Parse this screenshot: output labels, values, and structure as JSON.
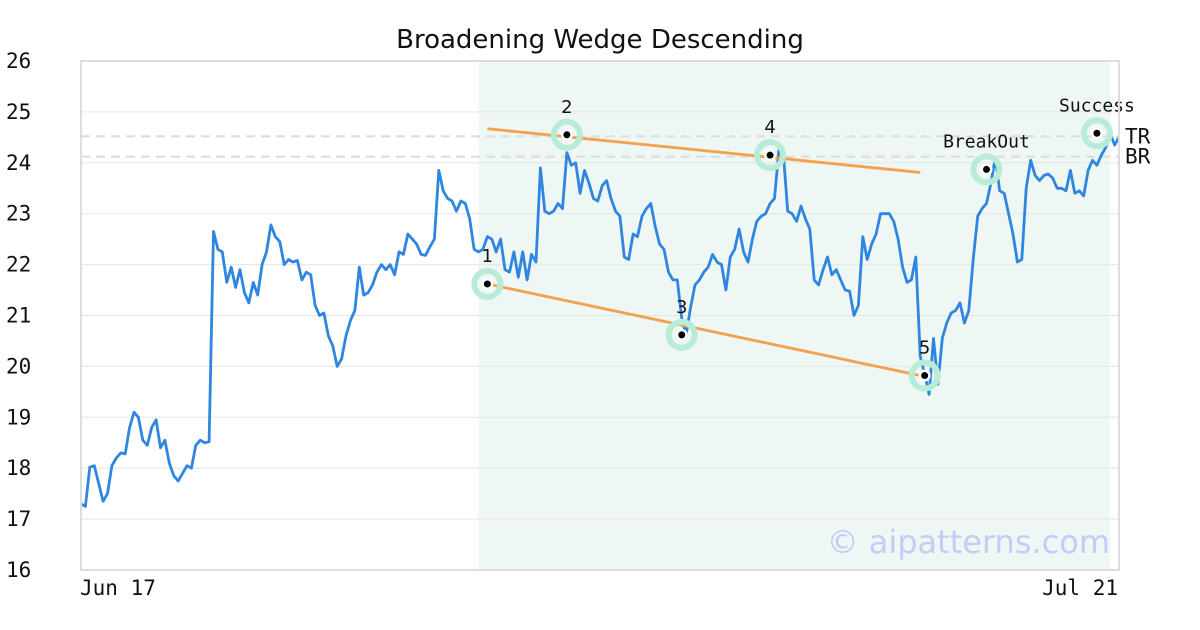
{
  "chart_data": {
    "type": "line",
    "title": "Broadening Wedge Descending",
    "watermark": "© aipatterns.com",
    "x_labels": [
      "Jun 17",
      "Jul 21"
    ],
    "ylim": [
      16,
      26
    ],
    "yticks": [
      16,
      17,
      18,
      19,
      20,
      21,
      22,
      23,
      24,
      25,
      26
    ],
    "grid": true,
    "colors": {
      "price_line": "#2f86e0",
      "trend_lines": "#f5a04d",
      "pattern_zone": "#eef7f3",
      "marker_halo": "#b9ecd7",
      "levels": "#dddddd",
      "axes": "#dddddd"
    },
    "pattern_zone": {
      "start_index": 90,
      "end_index": 233
    },
    "levels": [
      {
        "name": "TR",
        "value": 24.52
      },
      {
        "name": "BR",
        "value": 24.12
      }
    ],
    "trend_lines": [
      {
        "x": [
          92,
          190
        ],
        "y": [
          24.67,
          23.81
        ]
      },
      {
        "x": [
          92,
          190
        ],
        "y": [
          21.62,
          19.82
        ]
      }
    ],
    "points": [
      {
        "label": "1",
        "x": 92,
        "y": 21.62
      },
      {
        "label": "2",
        "x": 110,
        "y": 24.55
      },
      {
        "label": "3",
        "x": 136,
        "y": 20.62
      },
      {
        "label": "4",
        "x": 156,
        "y": 24.15
      },
      {
        "label": "5",
        "x": 191,
        "y": 19.82
      },
      {
        "label": "BreakOut",
        "x": 205,
        "y": 23.87
      },
      {
        "label": "Success",
        "x": 230,
        "y": 24.58
      }
    ],
    "series": [
      {
        "values": [
          17.3,
          17.25,
          18.02,
          18.05,
          17.7,
          17.35,
          17.5,
          18.05,
          18.2,
          18.3,
          18.28,
          18.8,
          19.1,
          19.0,
          18.55,
          18.45,
          18.8,
          18.95,
          18.4,
          18.55,
          18.1,
          17.85,
          17.75,
          17.9,
          18.05,
          18.0,
          18.45,
          18.55,
          18.5,
          18.52,
          22.65,
          22.3,
          22.25,
          21.65,
          21.95,
          21.55,
          21.9,
          21.45,
          21.25,
          21.65,
          21.4,
          22.0,
          22.25,
          22.78,
          22.55,
          22.45,
          22.0,
          22.1,
          22.05,
          22.08,
          21.7,
          21.85,
          21.8,
          21.2,
          21.0,
          21.05,
          20.6,
          20.4,
          20.0,
          20.15,
          20.6,
          20.9,
          21.1,
          21.95,
          21.4,
          21.45,
          21.6,
          21.85,
          22.0,
          21.9,
          22.0,
          21.8,
          22.25,
          22.2,
          22.6,
          22.5,
          22.4,
          22.2,
          22.18,
          22.35,
          22.5,
          23.85,
          23.45,
          23.3,
          23.25,
          23.05,
          23.25,
          23.2,
          22.9,
          22.3,
          22.25,
          22.3,
          22.55,
          22.5,
          22.25,
          22.5,
          21.9,
          21.85,
          22.25,
          21.75,
          22.25,
          21.7,
          22.2,
          22.05,
          23.9,
          23.05,
          23.0,
          23.05,
          23.2,
          23.1,
          24.2,
          23.95,
          24.0,
          23.4,
          23.85,
          23.6,
          23.3,
          23.25,
          23.55,
          23.65,
          23.3,
          23.05,
          22.95,
          22.15,
          22.1,
          22.6,
          22.55,
          22.95,
          23.1,
          23.2,
          22.75,
          22.4,
          22.3,
          21.85,
          21.7,
          21.7,
          20.95,
          20.62,
          21.15,
          21.6,
          21.7,
          21.85,
          21.95,
          22.2,
          22.05,
          22.0,
          21.5,
          22.15,
          22.3,
          22.7,
          22.25,
          22.05,
          22.5,
          22.85,
          22.95,
          23.0,
          23.2,
          23.3,
          24.25,
          24.2,
          23.05,
          23.0,
          22.85,
          23.15,
          22.9,
          22.7,
          21.7,
          21.6,
          21.9,
          22.15,
          21.8,
          21.9,
          21.7,
          21.5,
          21.48,
          21.0,
          21.2,
          22.55,
          22.1,
          22.4,
          22.6,
          23.0,
          23.0,
          23.0,
          22.85,
          22.5,
          21.95,
          21.65,
          21.7,
          22.15,
          20.2,
          19.85,
          19.45,
          20.55,
          19.65,
          20.55,
          20.85,
          21.05,
          21.1,
          21.25,
          20.85,
          21.1,
          22.1,
          22.95,
          23.1,
          23.2,
          23.6,
          24.1,
          23.45,
          23.4,
          23.0,
          22.6,
          22.05,
          22.1,
          23.5,
          24.05,
          23.75,
          23.65,
          23.75,
          23.78,
          23.7,
          23.5,
          23.5,
          23.45,
          23.85,
          23.4,
          23.45,
          23.35,
          23.85,
          24.05,
          23.95,
          24.15,
          24.3,
          24.58,
          24.35,
          24.5
        ]
      }
    ]
  }
}
